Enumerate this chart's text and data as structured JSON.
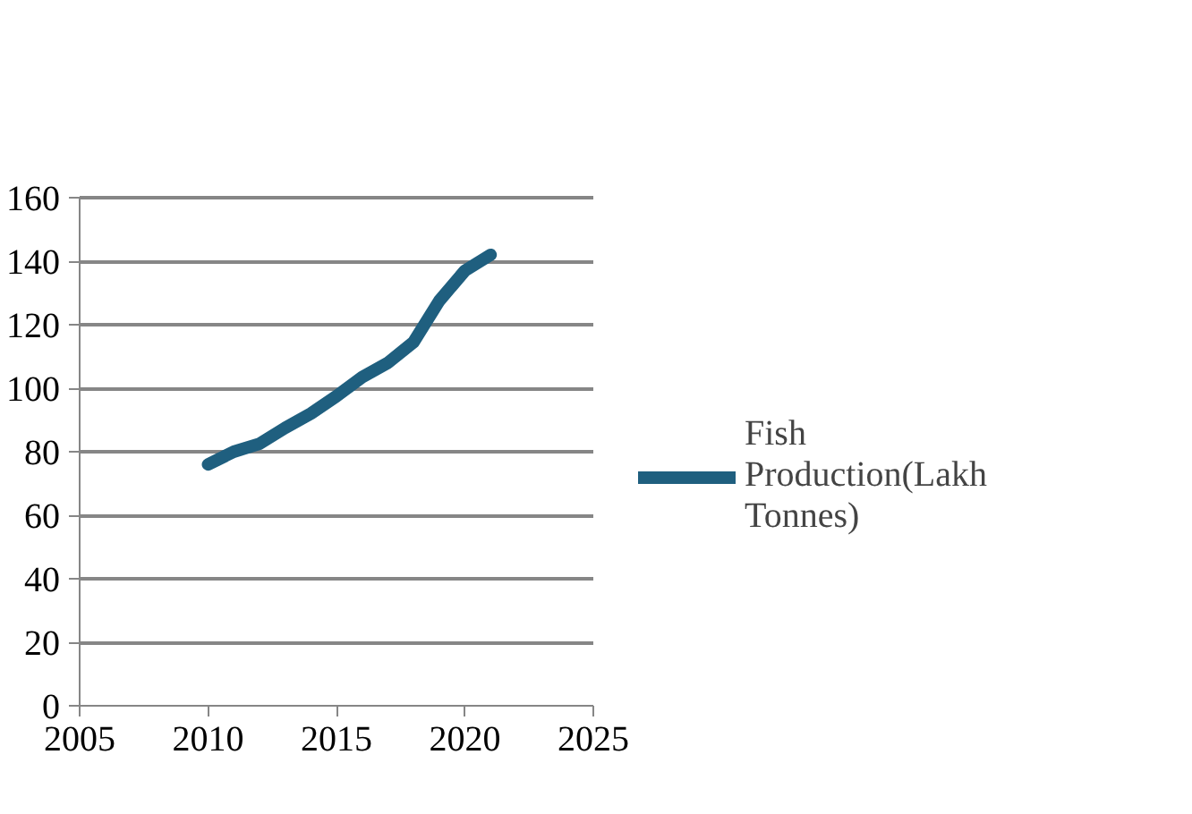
{
  "chart_data": {
    "type": "line",
    "x": [
      2010,
      2011,
      2012,
      2013,
      2014,
      2015,
      2016,
      2017,
      2018,
      2019,
      2020,
      2021
    ],
    "series": [
      {
        "name": "Fish Production(Lakh Tonnes)",
        "color": "#1f5f7f",
        "values": [
          76,
          80,
          82.5,
          87.5,
          92,
          97.5,
          103.5,
          108,
          114.5,
          127.5,
          137,
          142
        ]
      }
    ],
    "xlim": [
      2005,
      2025
    ],
    "xticks": [
      2005,
      2010,
      2015,
      2020,
      2025
    ],
    "ylim": [
      0,
      160
    ],
    "yticks": [
      0,
      20,
      40,
      60,
      80,
      100,
      120,
      140,
      160
    ],
    "grid": "y",
    "legend": "right",
    "marker": "none",
    "line_style": "solid"
  }
}
